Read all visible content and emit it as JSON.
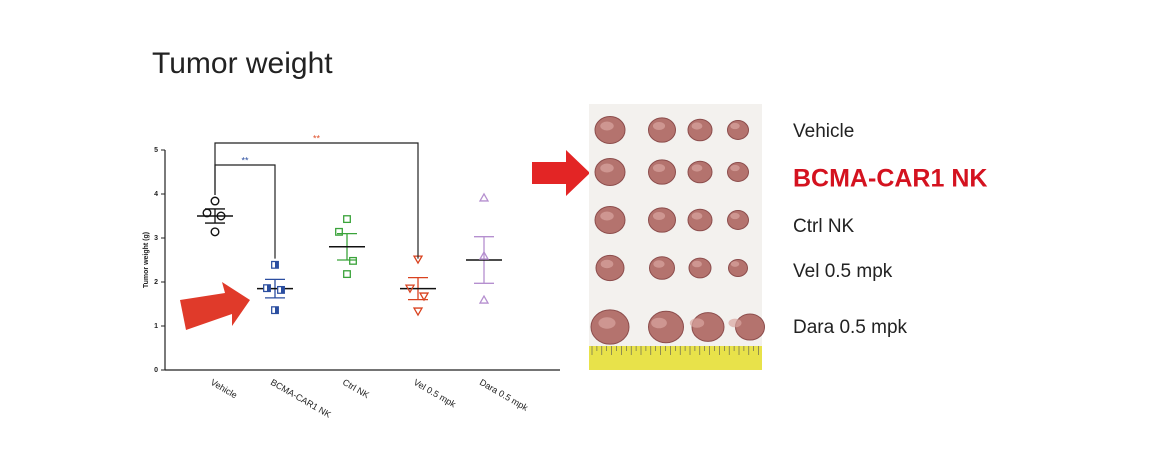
{
  "chart_data": {
    "type": "dot",
    "title": "Tumor weight",
    "ylabel": "Tumor weight (g)",
    "categories": [
      "Vehicle",
      "BCMA-CAR1 NK",
      "Ctrl NK",
      "Vel 0.5 mpk",
      "Dara 0.5 mpk"
    ],
    "ylim": [
      0,
      5
    ],
    "yticks": [
      0,
      1,
      2,
      3,
      4,
      5
    ],
    "groups": [
      {
        "color": "#111111",
        "marker": "circle",
        "points": [
          3.84,
          3.57,
          3.5,
          3.14
        ],
        "mean": 3.5,
        "sem": 0.16
      },
      {
        "color": "#2b4ea0",
        "marker": "half-square",
        "points": [
          2.39,
          1.86,
          1.82,
          1.36
        ],
        "mean": 1.85,
        "sem": 0.21
      },
      {
        "color": "#3aa33a",
        "marker": "square",
        "points": [
          3.43,
          3.14,
          2.48,
          2.18
        ],
        "mean": 2.8,
        "sem": 0.3
      },
      {
        "color": "#d9421f",
        "marker": "triangle-down",
        "points": [
          2.52,
          1.86,
          1.68,
          1.34
        ],
        "mean": 1.85,
        "sem": 0.25
      },
      {
        "color": "#b58fcf",
        "marker": "triangle-up",
        "points": [
          3.91,
          2.59,
          1.59
        ],
        "mean": 2.5,
        "sem": 0.53
      }
    ],
    "annotations": [
      {
        "text": "**",
        "color": "#2b4ea0",
        "from": 0,
        "to": 1
      },
      {
        "text": "**",
        "color": "#e0502a",
        "from": 0,
        "to": 3
      }
    ]
  },
  "photo_labels": [
    "Vehicle",
    "BCMA-CAR1 NK",
    "Ctrl NK",
    "Vel 0.5 mpk",
    "Dara 0.5 mpk"
  ],
  "highlight_color": "#d4121f"
}
